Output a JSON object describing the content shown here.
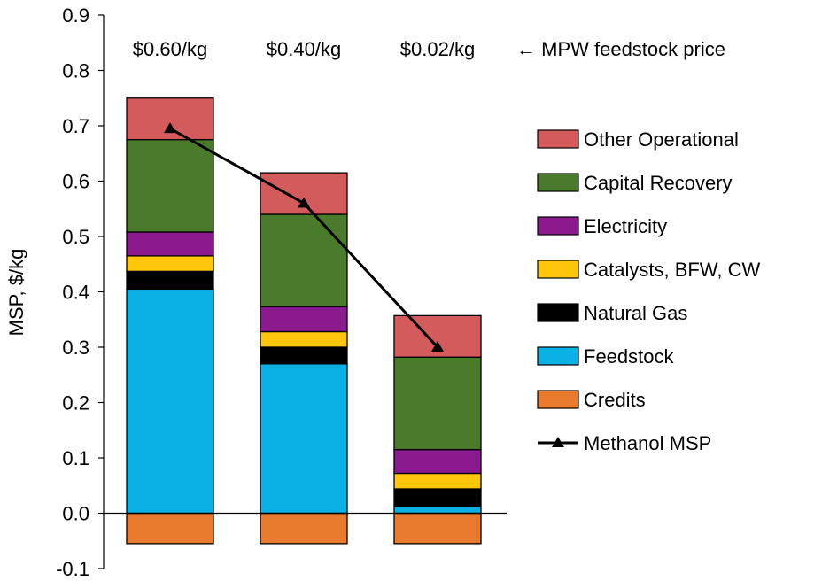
{
  "chart_data": {
    "type": "bar",
    "stacked": true,
    "categories": [
      "$0.60/kg",
      "$0.40/kg",
      "$0.02/kg"
    ],
    "category_header": "← MPW feedstock price",
    "ylabel": "MSP, $/kg",
    "ylim": [
      -0.1,
      0.9
    ],
    "yticks": [
      "-0.1",
      "0.0",
      "0.1",
      "0.2",
      "0.3",
      "0.4",
      "0.5",
      "0.6",
      "0.7",
      "0.8",
      "0.9"
    ],
    "grid": false,
    "legend_position": "right",
    "series": [
      {
        "name": "Credits",
        "color": "#E87B2D",
        "values": [
          -0.055,
          -0.055,
          -0.055
        ]
      },
      {
        "name": "Feedstock",
        "color": "#0BB0E5",
        "values": [
          0.405,
          0.27,
          0.012
        ]
      },
      {
        "name": "Natural Gas",
        "color": "#000000",
        "values": [
          0.032,
          0.03,
          0.032
        ]
      },
      {
        "name": "Catalysts, BFW, CW",
        "color": "#FFC60B",
        "values": [
          0.028,
          0.028,
          0.028
        ]
      },
      {
        "name": "Electricity",
        "color": "#8B1A8F",
        "values": [
          0.043,
          0.045,
          0.043
        ]
      },
      {
        "name": "Capital Recovery",
        "color": "#4A7A2C",
        "values": [
          0.167,
          0.167,
          0.167
        ]
      },
      {
        "name": "Other Operational",
        "color": "#D45B5B",
        "values": [
          0.075,
          0.075,
          0.075
        ]
      }
    ],
    "line_series": {
      "name": "Methanol MSP",
      "color": "#000000",
      "marker": "triangle",
      "values": [
        0.695,
        0.56,
        0.3
      ]
    },
    "legend_order": [
      "Other Operational",
      "Capital Recovery",
      "Electricity",
      "Catalysts, BFW, CW",
      "Natural Gas",
      "Feedstock",
      "Credits",
      "Methanol MSP"
    ]
  }
}
